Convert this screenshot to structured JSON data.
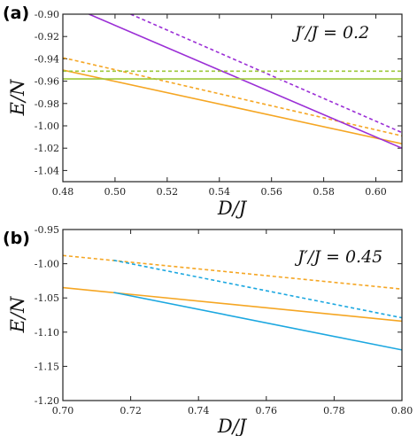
{
  "figure": {
    "colors": {
      "orange": "#F5A623",
      "violet": "#9B2FD6",
      "green": "#9DC83A",
      "blue": "#1BA7E0"
    }
  },
  "chart_data": [
    {
      "panel_label": "(a)",
      "type": "line",
      "xlabel": "D/J",
      "ylabel": "E/N",
      "annotation": "J′/J = 0.2",
      "xlim": [
        0.48,
        0.61
      ],
      "ylim": [
        -1.05,
        -0.9
      ],
      "xticks": [
        0.48,
        0.5,
        0.52,
        0.54,
        0.56,
        0.58,
        0.6
      ],
      "xtick_labels": [
        "0.48",
        "0.50",
        "0.52",
        "0.54",
        "0.56",
        "0.58",
        "0.60"
      ],
      "yticks": [
        -0.9,
        -0.92,
        -0.94,
        -0.96,
        -0.98,
        -1.0,
        -1.02,
        -1.04
      ],
      "ytick_labels": [
        "-0.90",
        "-0.92",
        "-0.94",
        "-0.96",
        "-0.98",
        "-1.00",
        "-1.02",
        "-1.04"
      ],
      "grid": false,
      "legend": "none",
      "series": [
        {
          "color": "orange",
          "dashed": false,
          "x": [
            0.48,
            0.61
          ],
          "y": [
            -0.95,
            -1.016
          ]
        },
        {
          "color": "orange",
          "dashed": true,
          "x": [
            0.48,
            0.61
          ],
          "y": [
            -0.939,
            -1.009
          ]
        },
        {
          "color": "violet",
          "dashed": false,
          "x": [
            0.49,
            0.61
          ],
          "y": [
            -0.9,
            -1.02
          ]
        },
        {
          "color": "violet",
          "dashed": true,
          "x": [
            0.506,
            0.61
          ],
          "y": [
            -0.9,
            -1.006
          ]
        },
        {
          "color": "green",
          "dashed": false,
          "x": [
            0.48,
            0.61
          ],
          "y": [
            -0.958,
            -0.958
          ]
        },
        {
          "color": "green",
          "dashed": true,
          "x": [
            0.48,
            0.61
          ],
          "y": [
            -0.951,
            -0.951
          ]
        }
      ]
    },
    {
      "panel_label": "(b)",
      "type": "line",
      "xlabel": "D/J",
      "ylabel": "E/N",
      "annotation": "J′/J = 0.45",
      "xlim": [
        0.7,
        0.8
      ],
      "ylim": [
        -1.2,
        -0.95
      ],
      "xticks": [
        0.7,
        0.72,
        0.74,
        0.76,
        0.78,
        0.8
      ],
      "xtick_labels": [
        "0.70",
        "0.72",
        "0.74",
        "0.76",
        "0.78",
        "0.80"
      ],
      "yticks": [
        -0.95,
        -1.0,
        -1.05,
        -1.1,
        -1.15,
        -1.2
      ],
      "ytick_labels": [
        "-0.95",
        "-1.00",
        "-1.05",
        "-1.10",
        "-1.15",
        "-1.20"
      ],
      "grid": false,
      "legend": "none",
      "series": [
        {
          "color": "orange",
          "dashed": false,
          "x": [
            0.7,
            0.8
          ],
          "y": [
            -1.035,
            -1.084
          ]
        },
        {
          "color": "orange",
          "dashed": true,
          "x": [
            0.7,
            0.8
          ],
          "y": [
            -0.988,
            -1.037
          ]
        },
        {
          "color": "blue",
          "dashed": false,
          "x": [
            0.715,
            0.8
          ],
          "y": [
            -1.042,
            -1.126
          ]
        },
        {
          "color": "blue",
          "dashed": true,
          "x": [
            0.715,
            0.8
          ],
          "y": [
            -0.995,
            -1.079
          ]
        }
      ]
    }
  ]
}
